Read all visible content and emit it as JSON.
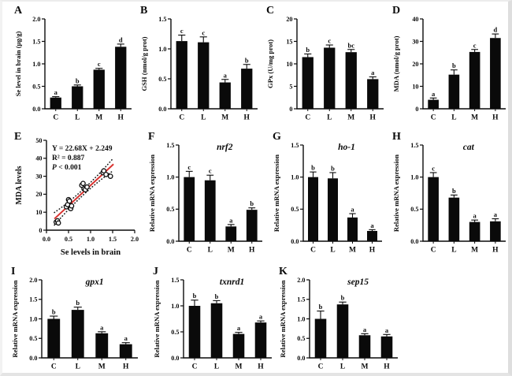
{
  "figure": {
    "background": "#ffffff",
    "bar_color": "#0a0a0a",
    "axis_color": "#0a0a0a",
    "regression_color": "#d93330",
    "band_color": "#1a1a1a"
  },
  "chart_data": [
    {
      "panel": "A",
      "type": "bar",
      "title": "",
      "ylabel": "Se level in brain (µg/g)",
      "categories": [
        "C",
        "L",
        "M",
        "H"
      ],
      "values": [
        0.25,
        0.5,
        0.87,
        1.38
      ],
      "errors": [
        0.02,
        0.03,
        0.03,
        0.06
      ],
      "sig_letters": [
        "a",
        "b",
        "c",
        "d"
      ],
      "ylim": [
        0,
        2.0
      ],
      "yticks": [
        0,
        0.5,
        1.0,
        1.5,
        2.0
      ],
      "ytick_decimals": 1
    },
    {
      "panel": "B",
      "type": "bar",
      "title": "",
      "ylabel": "GSH (nmol/g prot)",
      "categories": [
        "C",
        "L",
        "M",
        "H"
      ],
      "values": [
        1.13,
        1.11,
        0.44,
        0.67
      ],
      "errors": [
        0.1,
        0.09,
        0.05,
        0.07
      ],
      "sig_letters": [
        "c",
        "c",
        "a",
        "b"
      ],
      "ylim": [
        0,
        1.5
      ],
      "yticks": [
        0,
        0.5,
        1.0,
        1.5
      ],
      "ytick_decimals": 1
    },
    {
      "panel": "C",
      "type": "bar",
      "title": "",
      "ylabel": "GPx (U/mg prot)",
      "categories": [
        "C",
        "L",
        "M",
        "H"
      ],
      "values": [
        11.5,
        13.6,
        12.6,
        6.6
      ],
      "errors": [
        0.7,
        0.6,
        0.6,
        0.5
      ],
      "sig_letters": [
        "b",
        "c",
        "bc",
        "a"
      ],
      "ylim": [
        0,
        20
      ],
      "yticks": [
        0,
        5,
        10,
        15,
        20
      ],
      "ytick_decimals": 0
    },
    {
      "panel": "D",
      "type": "bar",
      "title": "",
      "ylabel": "MDA (nmol/g prot)",
      "categories": [
        "C",
        "L",
        "M",
        "H"
      ],
      "values": [
        4.0,
        15.2,
        25.3,
        31.5
      ],
      "errors": [
        0.8,
        2.1,
        1.1,
        1.8
      ],
      "sig_letters": [
        "a",
        "b",
        "c",
        "d"
      ],
      "ylim": [
        0,
        40
      ],
      "yticks": [
        0,
        10,
        20,
        30,
        40
      ],
      "ytick_decimals": 0
    },
    {
      "panel": "E",
      "type": "scatter",
      "xlabel": "Se levels in brain",
      "ylabel": "MDA levels",
      "xlim": [
        0,
        2.0
      ],
      "xticks": [
        0,
        0.5,
        1.0,
        1.5,
        2.0
      ],
      "xtick_decimals": 1,
      "ylim": [
        0,
        50
      ],
      "yticks": [
        0,
        10,
        20,
        30,
        40,
        50
      ],
      "ytick_decimals": 0,
      "annotation_lines": [
        "Y = 22.68X + 2.249",
        "R² = 0.887",
        "P < 0.001"
      ],
      "points": [
        [
          0.22,
          4.5
        ],
        [
          0.25,
          5.2
        ],
        [
          0.27,
          4.0
        ],
        [
          0.45,
          13.0
        ],
        [
          0.48,
          14.2
        ],
        [
          0.5,
          17.0
        ],
        [
          0.52,
          16.2
        ],
        [
          0.55,
          12.0
        ],
        [
          0.57,
          13.5
        ],
        [
          0.8,
          25.0
        ],
        [
          0.83,
          26.0
        ],
        [
          0.85,
          23.0
        ],
        [
          0.88,
          22.5
        ],
        [
          0.92,
          24.0
        ],
        [
          1.28,
          32.0
        ],
        [
          1.3,
          33.0
        ],
        [
          1.35,
          31.0
        ],
        [
          1.45,
          30.0
        ]
      ],
      "regression": {
        "slope": 22.68,
        "intercept": 2.249,
        "x_range": [
          0.18,
          1.52
        ],
        "band_offset": 3.5
      }
    },
    {
      "panel": "F",
      "type": "bar",
      "title": "nrf2",
      "ylabel": "Relative mRNA expression",
      "categories": [
        "C",
        "L",
        "M",
        "H"
      ],
      "values": [
        1.0,
        0.95,
        0.23,
        0.49
      ],
      "errors": [
        0.09,
        0.08,
        0.03,
        0.03
      ],
      "sig_letters": [
        "c",
        "c",
        "a",
        "b"
      ],
      "ylim": [
        0,
        1.5
      ],
      "yticks": [
        0,
        0.5,
        1.0,
        1.5
      ],
      "ytick_decimals": 1
    },
    {
      "panel": "G",
      "type": "bar",
      "title": "ho-1",
      "ylabel": "Relative mRNA expression",
      "categories": [
        "C",
        "L",
        "M",
        "H"
      ],
      "values": [
        1.0,
        0.98,
        0.37,
        0.16
      ],
      "errors": [
        0.08,
        0.09,
        0.06,
        0.02
      ],
      "sig_letters": [
        "b",
        "b",
        "a",
        "a"
      ],
      "ylim": [
        0,
        1.5
      ],
      "yticks": [
        0,
        0.5,
        1.0,
        1.5
      ],
      "ytick_decimals": 1
    },
    {
      "panel": "H",
      "type": "bar",
      "title": "cat",
      "ylabel": "Relative mRNA expression",
      "categories": [
        "C",
        "L",
        "M",
        "H"
      ],
      "values": [
        1.0,
        0.68,
        0.3,
        0.31
      ],
      "errors": [
        0.07,
        0.04,
        0.03,
        0.04
      ],
      "sig_letters": [
        "c",
        "b",
        "a",
        "a"
      ],
      "ylim": [
        0,
        1.5
      ],
      "yticks": [
        0,
        0.5,
        1.0,
        1.5
      ],
      "ytick_decimals": 1
    },
    {
      "panel": "I",
      "type": "bar",
      "title": "gpx1",
      "ylabel": "Relative mRNA expression",
      "categories": [
        "C",
        "L",
        "M",
        "H"
      ],
      "values": [
        1.0,
        1.23,
        0.63,
        0.35
      ],
      "errors": [
        0.07,
        0.07,
        0.04,
        0.04
      ],
      "sig_letters": [
        "b",
        "b",
        "a",
        "a"
      ],
      "ylim": [
        0,
        2.0
      ],
      "yticks": [
        0,
        0.5,
        1.0,
        1.5,
        2.0
      ],
      "ytick_decimals": 1
    },
    {
      "panel": "J",
      "type": "bar",
      "title": "txnrd1",
      "ylabel": "Relative mRNA expression",
      "categories": [
        "C",
        "L",
        "M",
        "H"
      ],
      "values": [
        1.0,
        1.05,
        0.46,
        0.68
      ],
      "errors": [
        0.11,
        0.05,
        0.03,
        0.03
      ],
      "sig_letters": [
        "b",
        "b",
        "a",
        "a"
      ],
      "ylim": [
        0,
        1.5
      ],
      "yticks": [
        0,
        0.5,
        1.0,
        1.5
      ],
      "ytick_decimals": 1
    },
    {
      "panel": "K",
      "type": "bar",
      "title": "sep15",
      "ylabel": "Relative mRNA expression",
      "categories": [
        "C",
        "L",
        "M",
        "H"
      ],
      "values": [
        1.0,
        1.37,
        0.58,
        0.55
      ],
      "errors": [
        0.2,
        0.06,
        0.04,
        0.05
      ],
      "sig_letters": [
        "b",
        "b",
        "a",
        "a"
      ],
      "ylim": [
        0,
        2.0
      ],
      "yticks": [
        0,
        0.5,
        1.0,
        1.5,
        2.0
      ],
      "ytick_decimals": 1
    }
  ]
}
